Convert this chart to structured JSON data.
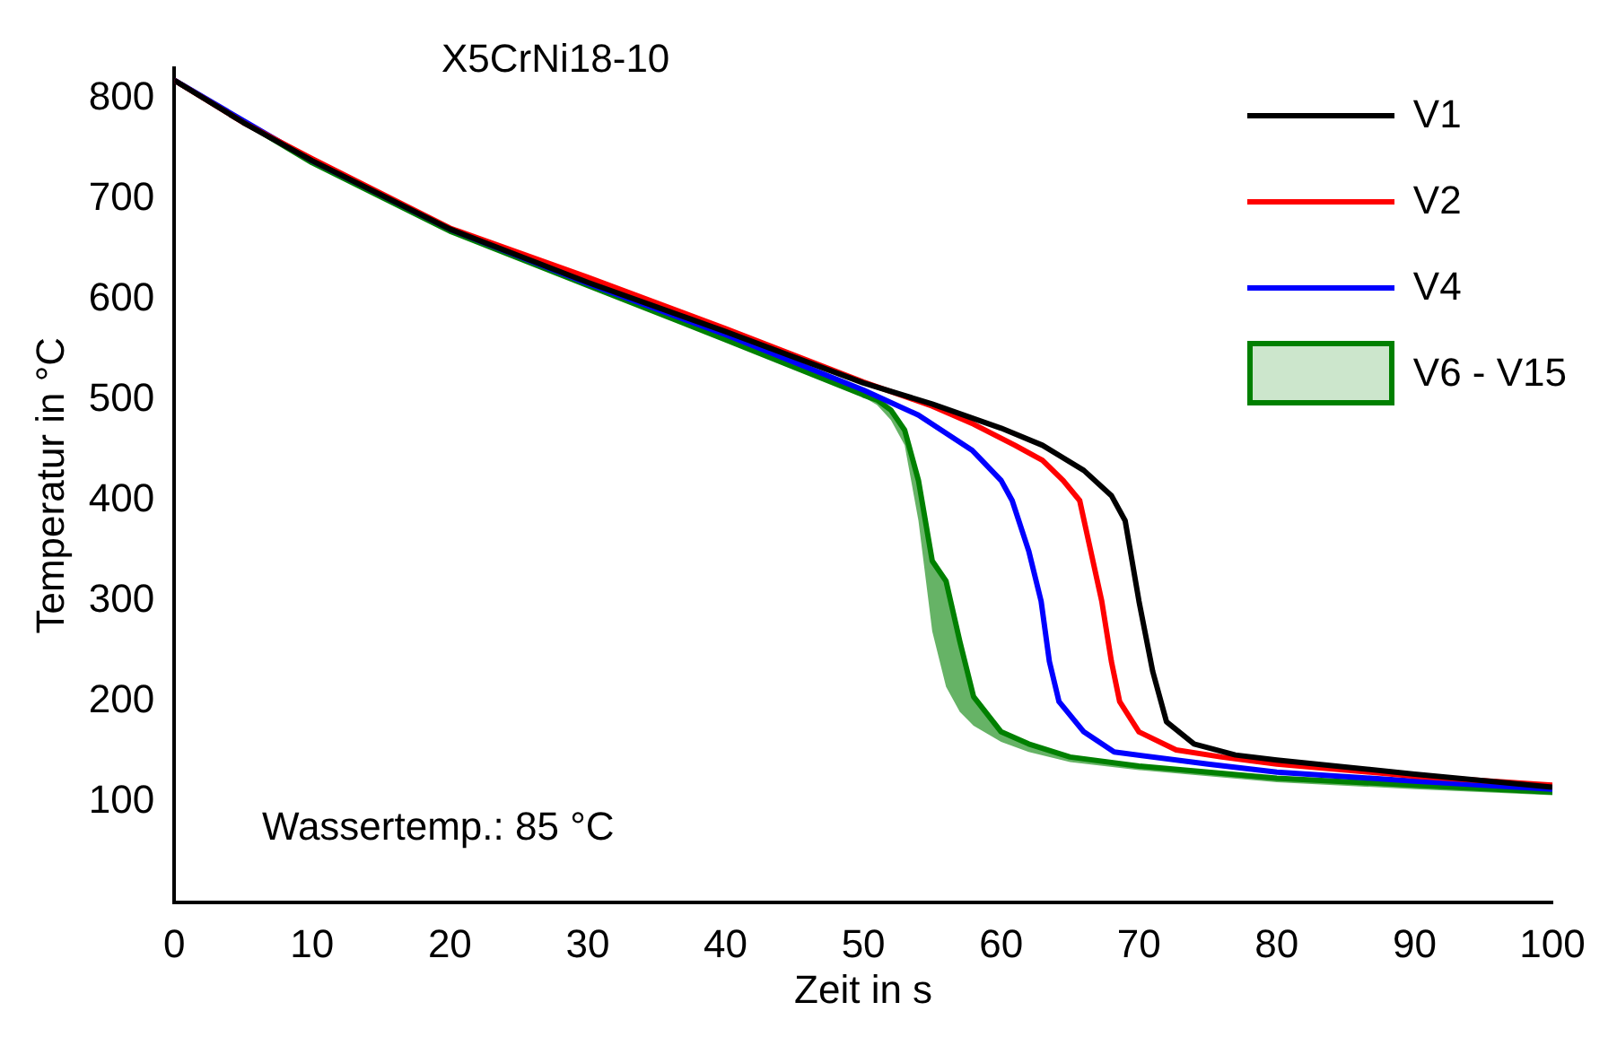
{
  "chart_data": {
    "type": "line",
    "title": "X5CrNi18-10",
    "xlabel": "Zeit in s",
    "ylabel": "Temperatur in °C",
    "annotations": [
      "Wassertemp.: 85 °C"
    ],
    "xlim": [
      0,
      100
    ],
    "xticks": [
      0,
      10,
      20,
      30,
      40,
      50,
      60,
      70,
      80,
      90,
      100
    ],
    "ylim": [
      0,
      830
    ],
    "yticks": [
      100,
      200,
      300,
      400,
      500,
      600,
      700,
      800
    ],
    "grid": false,
    "legend": "top right",
    "marker": "none",
    "line_style": "solid",
    "series": [
      {
        "name": "V1",
        "color": "#000000",
        "x": [
          0,
          5,
          10,
          20,
          30,
          40,
          50,
          55,
          60,
          63,
          66,
          68,
          69,
          70,
          71,
          72,
          74,
          77,
          80,
          90,
          100
        ],
        "values": [
          818,
          776,
          738,
          670,
          617,
          568,
          517,
          496,
          472,
          455,
          430,
          405,
          380,
          300,
          230,
          180,
          158,
          147,
          142,
          128,
          115
        ]
      },
      {
        "name": "V2",
        "color": "#ff0000",
        "x": [
          0,
          5,
          10,
          20,
          30,
          40,
          50,
          55,
          58,
          61,
          63,
          64.5,
          65.7,
          66.5,
          67.3,
          68,
          68.6,
          70,
          72.7,
          76,
          80,
          90,
          100
        ],
        "values": [
          818,
          776,
          740,
          671,
          622,
          571,
          518,
          494,
          476,
          455,
          440,
          420,
          400,
          350,
          300,
          240,
          200,
          170,
          152,
          145,
          138,
          126,
          117
        ]
      },
      {
        "name": "V4",
        "color": "#0000ff",
        "x": [
          0,
          10,
          20,
          30,
          40,
          50,
          54,
          57.9,
          60,
          60.8,
          62,
          62.9,
          63.5,
          64.2,
          66,
          68.2,
          75,
          80,
          90,
          100
        ],
        "values": [
          818,
          738,
          670,
          616,
          565,
          510,
          485,
          450,
          420,
          400,
          350,
          300,
          240,
          200,
          170,
          150,
          138,
          130,
          121,
          113
        ]
      },
      {
        "name": "V6 - V15",
        "color": "#008000",
        "x": [
          0,
          10,
          20,
          30,
          40,
          50,
          51,
          52,
          53,
          54,
          55,
          56,
          57,
          58,
          60,
          62,
          65,
          70,
          80,
          90,
          100
        ],
        "values": [
          818,
          736,
          668,
          614,
          560,
          505,
          500,
          490,
          470,
          420,
          340,
          320,
          260,
          205,
          170,
          158,
          145,
          136,
          124,
          117,
          110
        ],
        "upper": [
          818,
          736,
          668,
          614,
          560,
          505,
          500,
          490,
          470,
          420,
          340,
          320,
          260,
          205,
          170,
          158,
          145,
          136,
          124,
          117,
          110
        ],
        "lower": [
          816,
          734,
          666,
          612,
          558,
          503,
          495,
          480,
          455,
          380,
          270,
          215,
          190,
          176,
          160,
          150,
          140,
          132,
          120,
          113,
          107
        ]
      }
    ]
  }
}
